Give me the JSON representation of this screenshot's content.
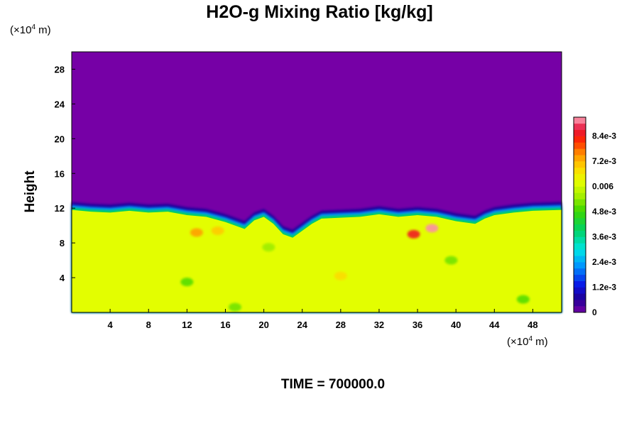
{
  "chart_data": {
    "type": "heatmap",
    "title": "H2O-g Mixing Ratio [kg/kg]",
    "ylabel": "Height",
    "x_unit_prefix": "(×10",
    "x_unit_exp": "4",
    "x_unit_suffix": " m)",
    "y_unit_prefix": "(×10",
    "y_unit_exp": "4",
    "y_unit_suffix": " m)",
    "time_label": "TIME = 700000.0",
    "xlim": [
      0,
      51
    ],
    "ylim": [
      0,
      30
    ],
    "x_ticks": [
      4,
      8,
      12,
      16,
      20,
      24,
      28,
      32,
      36,
      40,
      44,
      48
    ],
    "y_ticks": [
      4,
      8,
      12,
      16,
      20,
      24,
      28
    ],
    "colorbar": {
      "range": [
        0,
        0.0093
      ],
      "ticks": [
        {
          "value": 0,
          "label": "0"
        },
        {
          "value": 0.0012,
          "label": "1.2e-3"
        },
        {
          "value": 0.0024,
          "label": "2.4e-3"
        },
        {
          "value": 0.0036,
          "label": "3.6e-3"
        },
        {
          "value": 0.0048,
          "label": "4.8e-3"
        },
        {
          "value": 0.006,
          "label": "0.006"
        },
        {
          "value": 0.0072,
          "label": "7.2e-3"
        },
        {
          "value": 0.0084,
          "label": "8.4e-3"
        }
      ]
    },
    "moist_layer": {
      "value": 0.0062,
      "top_height": [
        [
          0,
          11.8
        ],
        [
          2,
          11.6
        ],
        [
          4,
          11.5
        ],
        [
          6,
          11.7
        ],
        [
          8,
          11.5
        ],
        [
          10,
          11.6
        ],
        [
          12,
          11.2
        ],
        [
          14,
          11.0
        ],
        [
          16,
          10.4
        ],
        [
          17,
          10.0
        ],
        [
          18,
          9.6
        ],
        [
          19,
          10.6
        ],
        [
          20,
          11.0
        ],
        [
          21,
          10.2
        ],
        [
          22,
          9.0
        ],
        [
          23,
          8.6
        ],
        [
          24,
          9.4
        ],
        [
          25,
          10.2
        ],
        [
          26,
          10.8
        ],
        [
          28,
          10.9
        ],
        [
          30,
          11.0
        ],
        [
          32,
          11.3
        ],
        [
          34,
          11.0
        ],
        [
          36,
          11.2
        ],
        [
          38,
          11.0
        ],
        [
          40,
          10.5
        ],
        [
          42,
          10.2
        ],
        [
          43,
          10.8
        ],
        [
          44,
          11.2
        ],
        [
          46,
          11.5
        ],
        [
          48,
          11.7
        ],
        [
          51,
          11.8
        ]
      ]
    },
    "dry_layer_value": 0.0,
    "features": [
      {
        "x": 35.6,
        "y": 9.0,
        "value": 0.0085
      },
      {
        "x": 37.5,
        "y": 9.7,
        "value": 0.0092
      },
      {
        "x": 13.0,
        "y": 9.2,
        "value": 0.0074
      },
      {
        "x": 15.2,
        "y": 9.4,
        "value": 0.007
      },
      {
        "x": 28.0,
        "y": 4.2,
        "value": 0.0068
      },
      {
        "x": 20.5,
        "y": 7.5,
        "value": 0.0055
      },
      {
        "x": 12.0,
        "y": 3.5,
        "value": 0.005
      },
      {
        "x": 47.0,
        "y": 1.5,
        "value": 0.005
      },
      {
        "x": 39.5,
        "y": 6.0,
        "value": 0.0052
      },
      {
        "x": 17.0,
        "y": 0.6,
        "value": 0.0052
      }
    ]
  }
}
